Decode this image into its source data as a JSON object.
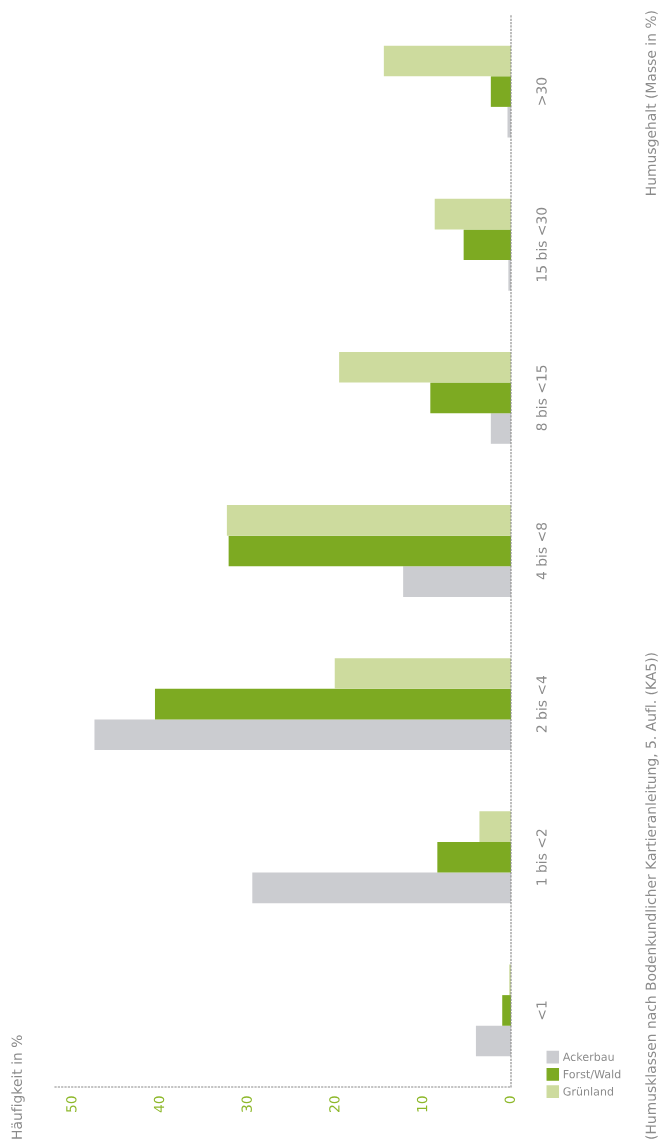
{
  "chart_data": {
    "type": "bar",
    "orientation": "horizontal",
    "title": "Häufigkeit in %",
    "categories": [
      ">30",
      "15 bis <30",
      "8 bis <15",
      "4 bis <8",
      "2 bis <4",
      "1 bis <2",
      "<1"
    ],
    "series": [
      {
        "name": "Ackerbau",
        "color": "#cbccd0",
        "values": [
          0.4,
          0.3,
          2.3,
          12.3,
          47.5,
          29.5,
          4.0
        ]
      },
      {
        "name": "Forst/Wald",
        "color": "#7daa22",
        "values": [
          2.3,
          5.4,
          9.2,
          32.2,
          40.6,
          8.4,
          1.0
        ]
      },
      {
        "name": "Grünland",
        "color": "#cddb9e",
        "values": [
          14.5,
          8.7,
          19.6,
          32.4,
          20.1,
          3.6,
          0.2
        ]
      }
    ],
    "xlim": [
      52,
      0
    ],
    "xticks": [
      50,
      40,
      30,
      20,
      10,
      0
    ],
    "grid": false,
    "legend": "bottom right",
    "annotations": [
      "Humusgehalt (Masse in %)",
      "(Humusklassen nach Bodenkundlicher Kartieranleitung, 5. Aufl. (KA5))"
    ]
  }
}
